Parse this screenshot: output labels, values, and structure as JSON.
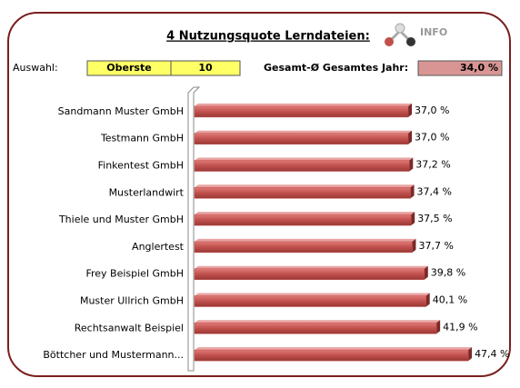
{
  "header": {
    "title": "4  Nutzungsquote Lerndateien:",
    "info": "INFO"
  },
  "controls": {
    "selection_label": "Auswahl:",
    "selection": "Oberste",
    "count": "10",
    "average_label": "Gesamt-Ø Gesamtes Jahr:",
    "average": "34,0 %"
  },
  "chart_data": {
    "type": "bar",
    "orientation": "horizontal",
    "color": "#c0504d",
    "categories": [
      "Sandmann Muster GmbH",
      "Testmann GmbH",
      "Finkentest GmbH",
      "Musterlandwirt",
      "Thiele und Muster GmbH",
      "Anglertest",
      "Frey Beispiel GmbH",
      "Muster Ullrich GmbH",
      "Rechtsanwalt Beispiel",
      "Böttcher und Mustermann..."
    ],
    "values": [
      37.0,
      37.0,
      37.2,
      37.4,
      37.5,
      37.7,
      39.8,
      40.1,
      41.9,
      47.4
    ],
    "value_labels": [
      "37,0 %",
      "37,0 %",
      "37,2 %",
      "37,4 %",
      "37,5 %",
      "37,7 %",
      "39,8 %",
      "40,1 %",
      "41,9 %",
      "47,4 %"
    ],
    "xlim": [
      0,
      54
    ]
  }
}
